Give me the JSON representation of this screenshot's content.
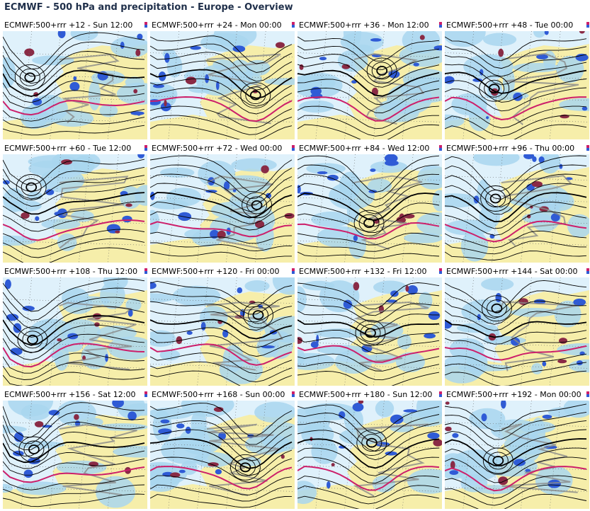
{
  "page": {
    "title": "ECMWF - 500 hPa and precipitation - Europe - Overview"
  },
  "colors": {
    "sea": "#dff1fb",
    "land": "#f6eeaa",
    "light_precip": "#a9d6ee",
    "medium_precip": "#2f5bd6",
    "heavy_precip": "#8a2a45",
    "contour": "#000000",
    "contour_552": "#cc1f6a",
    "coastline": "#8a8a8a",
    "title_text": "#1f2f4a"
  },
  "panels": [
    {
      "label": "ECMWF:500+rrr +12 - Sun 12:00"
    },
    {
      "label": "ECMWF:500+rrr +24 - Mon 00:00"
    },
    {
      "label": "ECMWF:500+rrr +36 - Mon 12:00"
    },
    {
      "label": "ECMWF:500+rrr +48 - Tue 00:00"
    },
    {
      "label": "ECMWF:500+rrr +60 - Tue 12:00"
    },
    {
      "label": "ECMWF:500+rrr +72 - Wed 00:00"
    },
    {
      "label": "ECMWF:500+rrr +84 - Wed 12:00"
    },
    {
      "label": "ECMWF:500+rrr +96 - Thu 00:00"
    },
    {
      "label": "ECMWF:500+rrr +108 - Thu 12:00"
    },
    {
      "label": "ECMWF:500+rrr +120 - Fri 00:00"
    },
    {
      "label": "ECMWF:500+rrr +132 - Fri 12:00"
    },
    {
      "label": "ECMWF:500+rrr +144 - Sat 00:00"
    },
    {
      "label": "ECMWF:500+rrr +156 - Sat 12:00"
    },
    {
      "label": "ECMWF:500+rrr +168 - Sun 00:00"
    },
    {
      "label": "ECMWF:500+rrr +180 - Sun 12:00"
    },
    {
      "label": "ECMWF:500+rrr +192 - Mon 00:00"
    }
  ]
}
